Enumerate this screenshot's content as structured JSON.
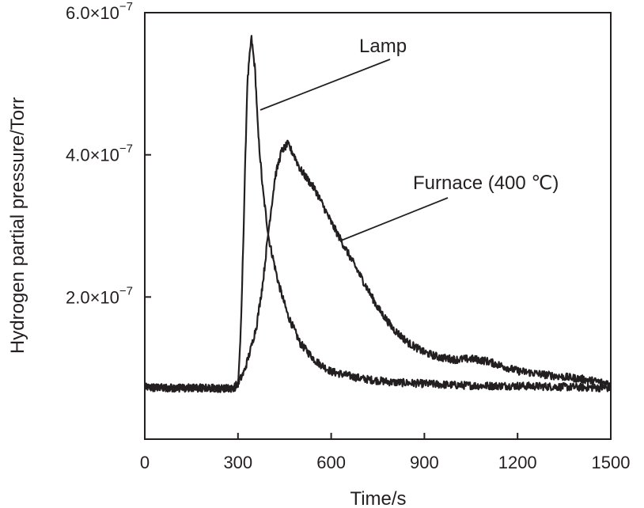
{
  "chart_data": {
    "type": "line",
    "xlabel": "Time/s",
    "ylabel": "Hydrogen partial pressure/Torr",
    "xlim": [
      0,
      1500
    ],
    "ylim": [
      0,
      6e-07
    ],
    "x_ticks": [
      "0",
      "300",
      "600",
      "900",
      "1200",
      "1500"
    ],
    "y_ticks": [
      {
        "value": 2e-07,
        "mant": "2.0×10",
        "exp": "−7"
      },
      {
        "value": 4e-07,
        "mant": "4.0×10",
        "exp": "−7"
      },
      {
        "value": 6e-07,
        "mant": "6.0×10",
        "exp": "−7"
      }
    ],
    "grid": false,
    "legend": "none",
    "series": [
      {
        "name": "Lamp",
        "color": "#231f20",
        "points": [
          [
            0,
            7.3e-08
          ],
          [
            100,
            7.2e-08
          ],
          [
            200,
            7.2e-08
          ],
          [
            280,
            7.1e-08
          ],
          [
            300,
            7.5e-08
          ],
          [
            310,
            1.6e-07
          ],
          [
            320,
            3.3e-07
          ],
          [
            330,
            5e-07
          ],
          [
            343,
            5.65e-07
          ],
          [
            355,
            5.2e-07
          ],
          [
            365,
            4.3e-07
          ],
          [
            380,
            3.5e-07
          ],
          [
            400,
            2.8e-07
          ],
          [
            430,
            2.2e-07
          ],
          [
            460,
            1.75e-07
          ],
          [
            500,
            1.35e-07
          ],
          [
            550,
            1.1e-07
          ],
          [
            600,
            9.5e-08
          ],
          [
            700,
            8.5e-08
          ],
          [
            800,
            8e-08
          ],
          [
            900,
            7.8e-08
          ],
          [
            1000,
            7.6e-08
          ],
          [
            1100,
            7.5e-08
          ],
          [
            1200,
            7.5e-08
          ],
          [
            1300,
            7.4e-08
          ],
          [
            1400,
            7.3e-08
          ],
          [
            1500,
            7.2e-08
          ]
        ]
      },
      {
        "name": "Furnace (400 ℃)",
        "color": "#231f20",
        "points": [
          [
            0,
            7.3e-08
          ],
          [
            100,
            7.2e-08
          ],
          [
            200,
            7.2e-08
          ],
          [
            280,
            7.1e-08
          ],
          [
            300,
            7.8e-08
          ],
          [
            320,
            9.5e-08
          ],
          [
            340,
            1.25e-07
          ],
          [
            360,
            1.6e-07
          ],
          [
            380,
            2.2e-07
          ],
          [
            400,
            3e-07
          ],
          [
            420,
            3.7e-07
          ],
          [
            440,
            4.05e-07
          ],
          [
            460,
            4.15e-07
          ],
          [
            480,
            4e-07
          ],
          [
            500,
            3.8e-07
          ],
          [
            550,
            3.5e-07
          ],
          [
            600,
            3.05e-07
          ],
          [
            650,
            2.65e-07
          ],
          [
            700,
            2.25e-07
          ],
          [
            750,
            1.85e-07
          ],
          [
            800,
            1.55e-07
          ],
          [
            850,
            1.35e-07
          ],
          [
            900,
            1.22e-07
          ],
          [
            950,
            1.15e-07
          ],
          [
            1000,
            1.12e-07
          ],
          [
            1050,
            1.13e-07
          ],
          [
            1100,
            1.1e-07
          ],
          [
            1150,
            1.03e-07
          ],
          [
            1200,
            9.6e-08
          ],
          [
            1300,
            9e-08
          ],
          [
            1400,
            8.5e-08
          ],
          [
            1500,
            7.8e-08
          ]
        ]
      }
    ],
    "annotations": [
      {
        "text": "Lamp",
        "series": 0
      },
      {
        "text": "Furnace (400 ℃)",
        "series": 1
      }
    ]
  }
}
